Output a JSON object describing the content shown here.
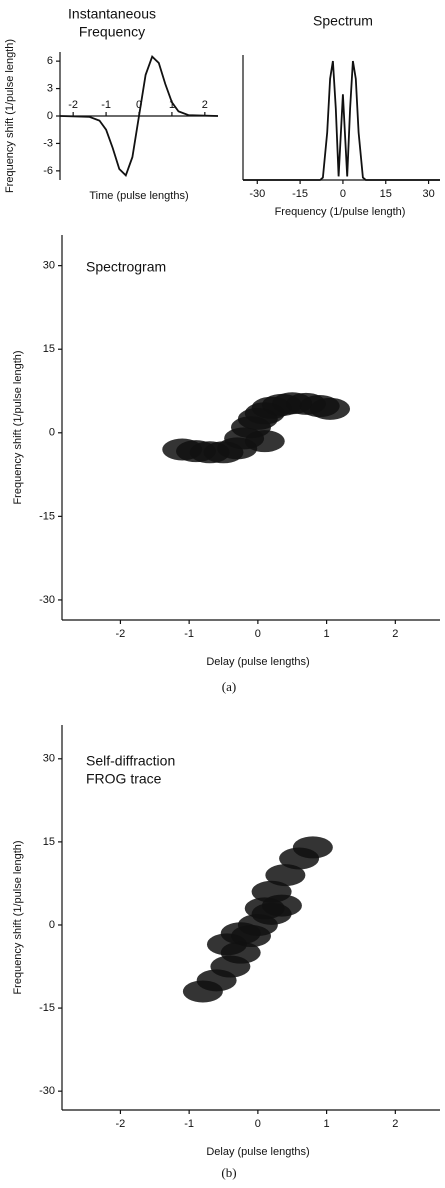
{
  "chart_data": [
    {
      "type": "line",
      "title": [
        "Instantaneous",
        "Frequency"
      ],
      "xlabel": "Time (pulse lengths)",
      "ylabel": "Frequency shift (1/pulse length)",
      "x": [
        -2.4,
        -1.5,
        -1.2,
        -1,
        -0.8,
        -0.6,
        -0.4,
        -0.2,
        0,
        0.2,
        0.4,
        0.6,
        0.8,
        1,
        1.2,
        1.5,
        2.4
      ],
      "values": [
        0,
        -0.1,
        -0.5,
        -1.5,
        -3.5,
        -5.8,
        -6.5,
        -4.5,
        0,
        4.5,
        6.5,
        5.8,
        3.5,
        1.5,
        0.5,
        0.1,
        0
      ],
      "color": "#111111",
      "xlim": [
        -2.4,
        2.4
      ],
      "ylim": [
        -7,
        7
      ],
      "xticks": [
        -2,
        -1,
        0,
        1,
        2
      ],
      "yticks": [
        6,
        3,
        0,
        -3,
        -6
      ]
    },
    {
      "type": "line",
      "title": [
        "Spectrum"
      ],
      "xlabel": "Frequency (1/pulse length)",
      "x": [
        -35,
        -8,
        -7,
        -5.5,
        -4.5,
        -3.5,
        -2.5,
        -1.5,
        -0.8,
        0,
        0.8,
        1.5,
        2.5,
        3.5,
        4.5,
        5.5,
        7,
        8,
        34
      ],
      "values": [
        0,
        0,
        0.02,
        0.4,
        0.85,
        1,
        0.6,
        0.03,
        0.35,
        0.72,
        0.35,
        0.03,
        0.6,
        1,
        0.85,
        0.4,
        0.02,
        0,
        0
      ],
      "color": "#111111",
      "xlim": [
        -35,
        34
      ],
      "ylim": [
        0,
        1.05
      ],
      "xticks": [
        -30,
        -15,
        0,
        15,
        30
      ]
    },
    {
      "type": "scatter",
      "title": [
        "Spectrogram"
      ],
      "xlabel": "Delay (pulse lengths)",
      "ylabel": "Frequency shift (1/pulse length)",
      "caption": "(a)",
      "x": [
        -1.1,
        -0.9,
        -0.7,
        -0.5,
        -0.3,
        -0.2,
        -0.1,
        0,
        0.1,
        0.2,
        0.35,
        0.5,
        0.7,
        0.9,
        1.05,
        0.1
      ],
      "values": [
        -3,
        -3.3,
        -3.5,
        -3.5,
        -2.8,
        -1,
        1,
        2.5,
        3.5,
        4.5,
        5,
        5.3,
        5.2,
        4.8,
        4.3,
        -1.5
      ],
      "color": "#111111",
      "xlim": [
        -2.85,
        2.65
      ],
      "ylim": [
        -33.6,
        35.5
      ],
      "xticks": [
        -2,
        -1,
        0,
        1,
        2
      ],
      "yticks": [
        30,
        15,
        0,
        -15,
        -30
      ]
    },
    {
      "type": "scatter",
      "title": [
        "Self-diffraction",
        "FROG trace"
      ],
      "xlabel": "Delay (pulse lengths)",
      "ylabel": "Frequency shift (1/pulse length)",
      "caption": "(b)",
      "x": [
        -0.8,
        -0.6,
        -0.4,
        -0.25,
        -0.1,
        0,
        0.1,
        0.2,
        0.4,
        0.6,
        0.8,
        -0.45,
        -0.25,
        0.2,
        0.35
      ],
      "values": [
        -12,
        -10,
        -7.5,
        -5,
        -2,
        0,
        3,
        6,
        9,
        12,
        14,
        -3.5,
        -1.5,
        2,
        3.5
      ],
      "color": "#111111",
      "xlim": [
        -2.85,
        2.65
      ],
      "ylim": [
        -33.4,
        36.1
      ],
      "xticks": [
        -2,
        -1,
        0,
        1,
        2
      ],
      "yticks": [
        30,
        15,
        0,
        -15,
        -30
      ]
    }
  ]
}
